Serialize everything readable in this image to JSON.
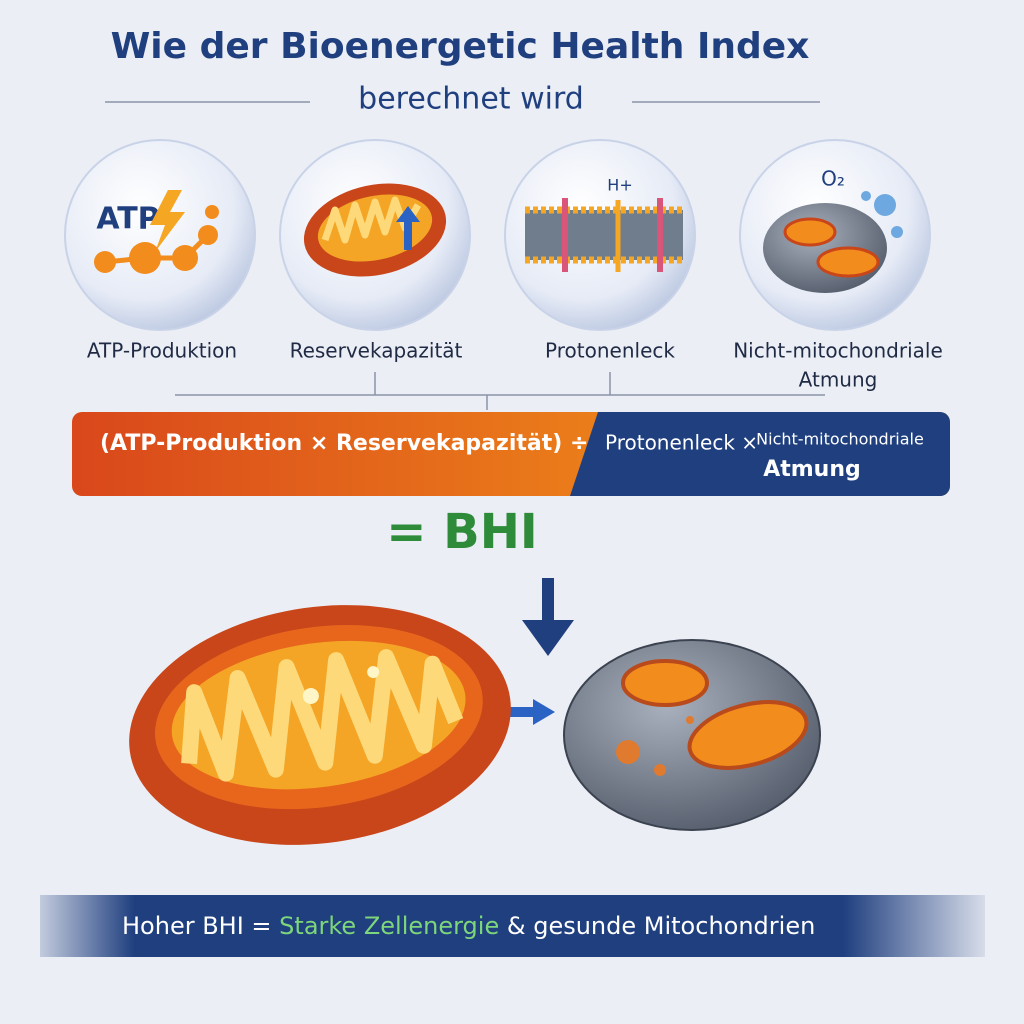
{
  "header": {
    "title": "Wie der Bioenergetic Health Index",
    "subtitle": "berechnet wird"
  },
  "components": [
    {
      "icon_text": "ATP",
      "label": "ATP-Produktion"
    },
    {
      "label": "Reservekapazität"
    },
    {
      "icon_text": "H+",
      "label": "Protonenleck"
    },
    {
      "icon_text": "O₂",
      "label_lines": [
        "Nicht-mitochondriale",
        "Atmung"
      ]
    }
  ],
  "formula": {
    "left": "(ATP-Produktion × Reservekapazität) ÷",
    "right_prefix": "Protonenleck ×",
    "right_lines": [
      "Nicht-mitochondriale",
      "Atmung"
    ]
  },
  "result": "= BHI",
  "footer": {
    "prefix": "Hoher BHI =",
    "highlight": "Starke Zellenergie",
    "suffix": "& gesunde Mitochondrien"
  }
}
